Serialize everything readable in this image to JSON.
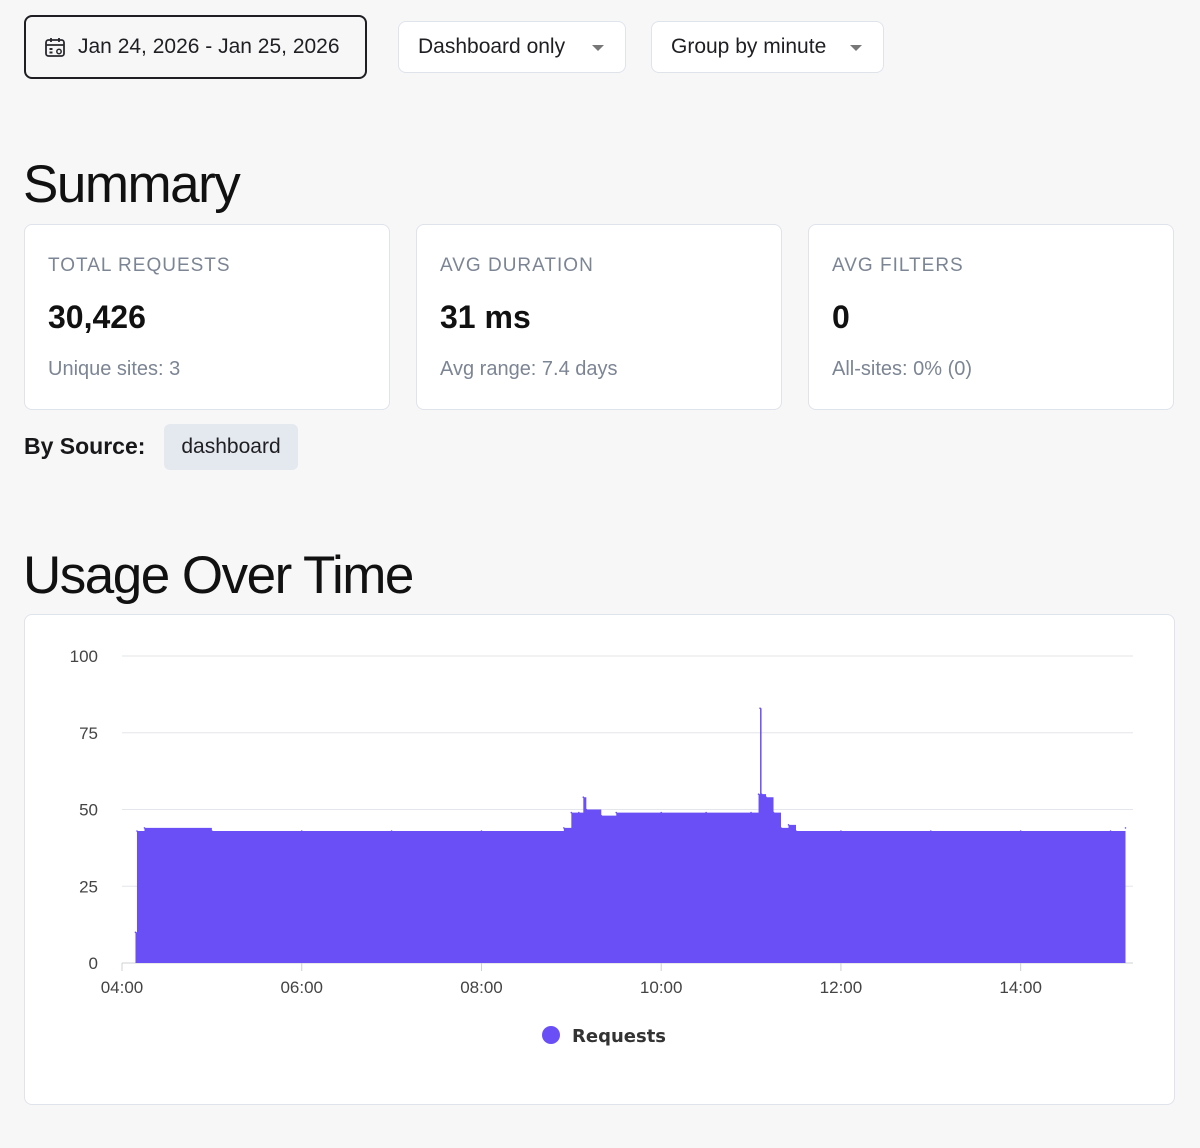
{
  "toolbar": {
    "date_range": "Jan 24, 2026 - Jan 25, 2026",
    "source_filter": "Dashboard only",
    "grouping": "Group by minute",
    "icons": [
      "calendar-icon",
      "chevron-down-icon"
    ]
  },
  "summary": {
    "title": "Summary",
    "cards": [
      {
        "label": "TOTAL REQUESTS",
        "value": "30,426",
        "sub": "Unique sites: 3"
      },
      {
        "label": "AVG DURATION",
        "value": "31 ms",
        "sub": "Avg range: 7.4 days"
      },
      {
        "label": "AVG FILTERS",
        "value": "0",
        "sub": "All-sites: 0% (0)"
      }
    ],
    "by_source_label": "By Source:",
    "sources": [
      "dashboard"
    ]
  },
  "usage": {
    "title": "Usage Over Time"
  },
  "colors": {
    "accent": "#6a4ff7",
    "background": "#f7f7f8",
    "card_border": "#dfe3ea"
  },
  "chart_data": {
    "type": "area",
    "xlabel": "",
    "ylabel": "",
    "ylim": [
      0,
      100
    ],
    "yticks": [
      "0",
      "25",
      "50",
      "75",
      "100"
    ],
    "xticks": [
      "04:00",
      "06:00",
      "08:00",
      "10:00",
      "12:00",
      "14:00"
    ],
    "xrange": [
      "04:00",
      "15:15"
    ],
    "grid": true,
    "legend": "bottom-center",
    "series": [
      {
        "name": "Requests",
        "color": "#6a4ff7",
        "x": [
          "04:09",
          "04:10",
          "04:15",
          "05:00",
          "06:00",
          "07:00",
          "08:00",
          "08:55",
          "09:00",
          "09:05",
          "09:08",
          "09:10",
          "09:20",
          "09:30",
          "10:00",
          "10:30",
          "11:00",
          "11:05",
          "11:06",
          "11:07",
          "11:10",
          "11:15",
          "11:20",
          "11:25",
          "11:30",
          "12:00",
          "13:00",
          "14:00",
          "15:00",
          "15:10"
        ],
        "values": [
          10,
          43,
          44,
          43,
          43,
          43,
          43,
          44,
          49,
          49,
          54,
          50,
          48,
          49,
          49,
          49,
          49,
          55,
          83,
          55,
          54,
          49,
          44,
          45,
          43,
          43,
          43,
          43,
          43,
          44
        ]
      }
    ]
  }
}
